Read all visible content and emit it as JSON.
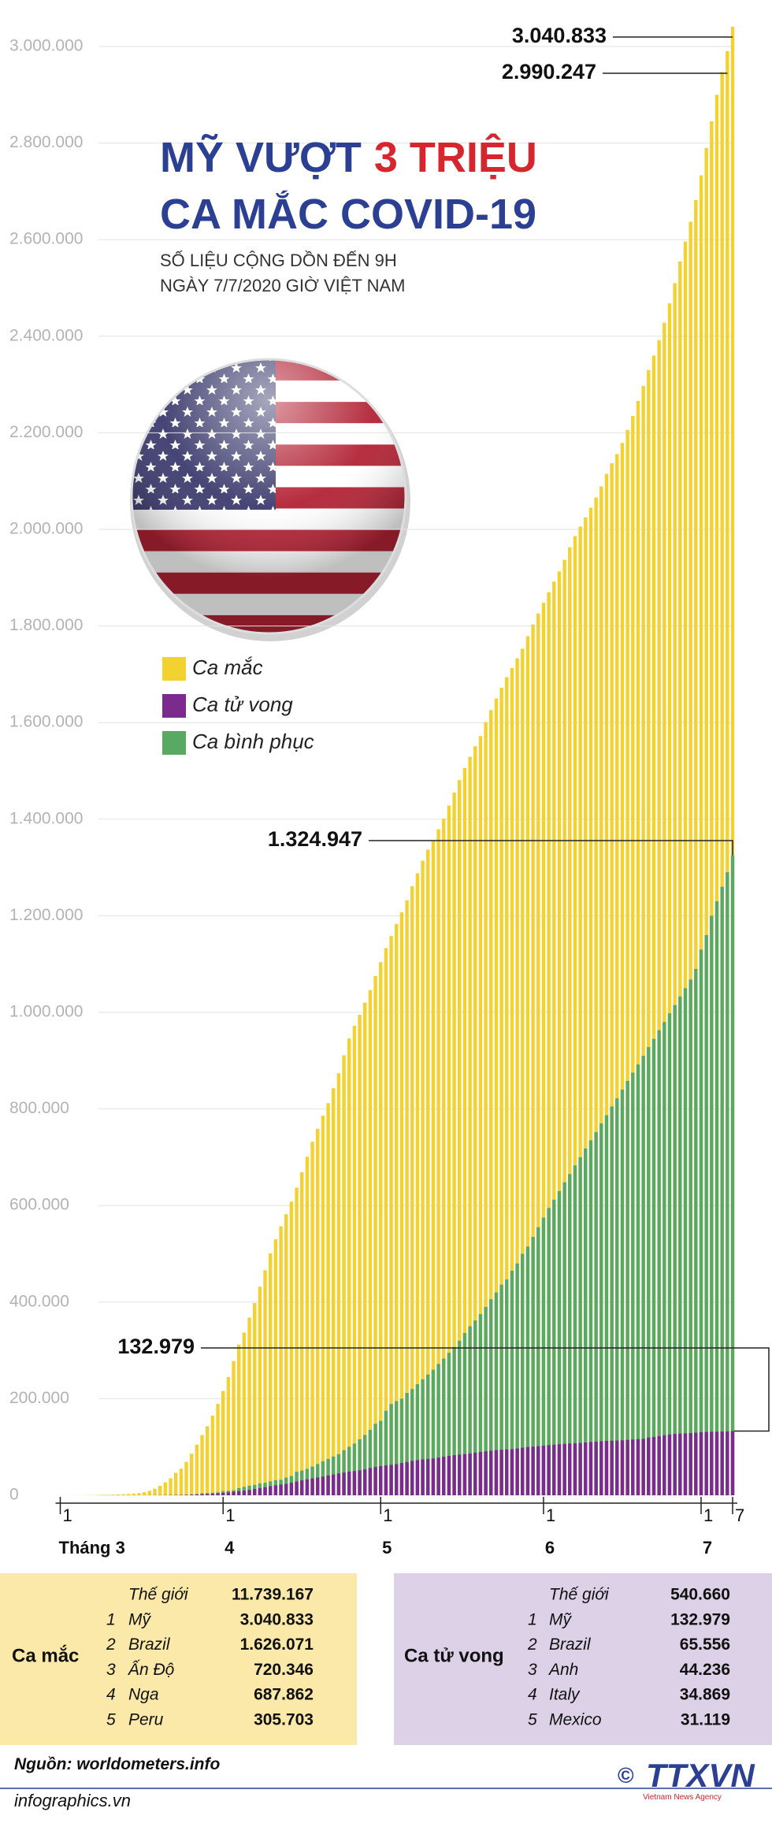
{
  "chart_data": {
    "type": "bar",
    "title": {
      "line1": "MỸ VƯỢT",
      "highlight": "3 TRIỆU",
      "line2": "CA MẮC COVID-19"
    },
    "subtitle": [
      "SỐ LIỆU CỘNG DỒN ĐẾN 9H",
      "NGÀY 7/7/2020 GIỜ VIỆT NAM"
    ],
    "categories": [
      "1",
      null,
      null,
      null,
      null,
      null,
      null,
      null,
      null,
      null,
      null,
      null,
      null,
      null,
      null,
      null,
      null,
      null,
      null,
      null,
      null,
      null,
      null,
      null,
      null,
      null,
      null,
      null,
      null,
      null,
      null,
      "1",
      null,
      null,
      null,
      null,
      null,
      null,
      null,
      null,
      null,
      null,
      null,
      null,
      null,
      null,
      null,
      null,
      null,
      null,
      null,
      null,
      null,
      null,
      null,
      null,
      null,
      null,
      null,
      null,
      null,
      "1",
      null,
      null,
      null,
      null,
      null,
      null,
      null,
      null,
      null,
      null,
      null,
      null,
      null,
      null,
      null,
      null,
      null,
      null,
      null,
      null,
      null,
      null,
      null,
      null,
      null,
      null,
      null,
      null,
      null,
      null,
      "1",
      null,
      null,
      null,
      null,
      null,
      null,
      null,
      null,
      null,
      null,
      null,
      null,
      null,
      null,
      null,
      null,
      null,
      null,
      null,
      null,
      null,
      null,
      null,
      null,
      null,
      null,
      null,
      null,
      null,
      "1",
      null,
      null,
      null,
      null,
      null,
      "7"
    ],
    "month_labels": [
      "Tháng 3",
      "4",
      "5",
      "6",
      "7"
    ],
    "series": [
      {
        "name": "Ca mắc",
        "color": "#f3d130",
        "values": [
          75,
          100,
          125,
          160,
          220,
          320,
          440,
          570,
          700,
          990,
          1300,
          1700,
          2200,
          2900,
          3500,
          4600,
          6400,
          9400,
          13700,
          19600,
          26700,
          35200,
          46500,
          55200,
          69200,
          86000,
          104800,
          124800,
          143000,
          165000,
          189000,
          216000,
          245000,
          278000,
          312000,
          337000,
          368000,
          398000,
          432000,
          466000,
          501000,
          530000,
          557000,
          582000,
          608000,
          637000,
          669000,
          701000,
          732000,
          759000,
          786000,
          812000,
          843000,
          874000,
          911000,
          946000,
          972000,
          995000,
          1020000,
          1046000,
          1075000,
          1104000,
          1133000,
          1158000,
          1183000,
          1207000,
          1232000,
          1261000,
          1288000,
          1314000,
          1337000,
          1356000,
          1379000,
          1401000,
          1428000,
          1455000,
          1481000,
          1506000,
          1529000,
          1551000,
          1572000,
          1601000,
          1626000,
          1650000,
          1672000,
          1694000,
          1713000,
          1733000,
          1753000,
          1779000,
          1803000,
          1826000,
          1848000,
          1870000,
          1892000,
          1913000,
          1937000,
          1963000,
          1986000,
          2006000,
          2025000,
          2045000,
          2066000,
          2089000,
          2115000,
          2137000,
          2156000,
          2179000,
          2206000,
          2235000,
          2266000,
          2297000,
          2330000,
          2360000,
          2392000,
          2428000,
          2468000,
          2510000,
          2555000,
          2596000,
          2637000,
          2682000,
          2733000,
          2790000,
          2845000,
          2900000,
          2947000,
          2990247,
          3040833
        ],
        "value_labels": [
          null,
          null,
          null,
          null,
          null,
          null,
          null,
          null,
          null,
          null,
          null,
          null,
          null,
          null,
          null,
          null,
          null,
          null,
          null,
          null,
          null,
          null,
          null,
          null,
          null,
          null,
          null,
          null,
          null,
          null,
          null,
          null,
          null,
          null,
          null,
          null,
          null,
          null,
          null,
          null,
          null,
          null,
          null,
          null,
          null,
          null,
          null,
          null,
          null,
          null,
          null,
          null,
          null,
          null,
          null,
          null,
          null,
          null,
          null,
          null,
          null,
          null,
          null,
          null,
          null,
          null,
          null,
          null,
          null,
          null,
          null,
          null,
          null,
          null,
          null,
          null,
          null,
          null,
          null,
          null,
          null,
          null,
          null,
          null,
          null,
          null,
          null,
          null,
          null,
          null,
          null,
          null,
          null,
          null,
          null,
          null,
          null,
          null,
          null,
          null,
          null,
          null,
          null,
          null,
          null,
          null,
          null,
          null,
          null,
          null,
          null,
          null,
          null,
          null,
          null,
          null,
          null,
          null,
          null,
          null,
          null,
          null,
          null,
          null,
          null,
          null,
          null,
          "2.990.247",
          "3.040.833"
        ]
      },
      {
        "name": "Ca tử vong",
        "color": "#7a2b8d",
        "values": [
          1,
          6,
          9,
          11,
          12,
          15,
          19,
          22,
          26,
          30,
          38,
          41,
          49,
          57,
          68,
          85,
          108,
          150,
          200,
          260,
          340,
          470,
          590,
          800,
          1050,
          1300,
          1700,
          2200,
          2500,
          3100,
          4000,
          5000,
          6100,
          7400,
          8500,
          9700,
          11000,
          13000,
          14800,
          16700,
          18700,
          20600,
          22100,
          23600,
          25900,
          28400,
          30900,
          33000,
          35000,
          36800,
          38600,
          40900,
          43200,
          45200,
          47000,
          49000,
          50300,
          51600,
          53700,
          56400,
          58600,
          60400,
          61900,
          63000,
          64300,
          66700,
          69000,
          71100,
          72800,
          74300,
          75200,
          76200,
          77900,
          79700,
          81500,
          83100,
          84200,
          85000,
          86600,
          88200,
          89700,
          91000,
          92300,
          93500,
          94100,
          94800,
          95500,
          96900,
          98500,
          99800,
          100800,
          101600,
          102600,
          103700,
          104700,
          105700,
          106500,
          107200,
          107600,
          108300,
          109300,
          110300,
          111100,
          111900,
          112600,
          112900,
          113300,
          113800,
          114700,
          115500,
          116200,
          116800,
          119600,
          120800,
          122400,
          124300,
          126000,
          127000,
          127700,
          128100,
          128700,
          129700,
          130500,
          131200,
          131500,
          131700,
          132000,
          132300,
          132979
        ],
        "value_labels": [
          null,
          null,
          null,
          null,
          null,
          null,
          null,
          null,
          null,
          null,
          null,
          null,
          null,
          null,
          null,
          null,
          null,
          null,
          null,
          null,
          null,
          null,
          null,
          null,
          null,
          null,
          null,
          null,
          null,
          null,
          null,
          null,
          null,
          null,
          null,
          null,
          null,
          null,
          null,
          null,
          null,
          null,
          null,
          null,
          null,
          null,
          null,
          null,
          null,
          null,
          null,
          null,
          null,
          null,
          null,
          null,
          null,
          null,
          null,
          null,
          null,
          null,
          null,
          null,
          null,
          null,
          null,
          null,
          null,
          null,
          null,
          null,
          null,
          null,
          null,
          null,
          null,
          null,
          null,
          null,
          null,
          null,
          null,
          null,
          null,
          null,
          null,
          null,
          null,
          null,
          null,
          null,
          null,
          null,
          null,
          null,
          null,
          null,
          null,
          null,
          null,
          null,
          null,
          null,
          null,
          null,
          null,
          null,
          null,
          null,
          null,
          null,
          null,
          null,
          null,
          null,
          null,
          null,
          null,
          null,
          null,
          null,
          null,
          null,
          null,
          null,
          null,
          null,
          "132.979"
        ]
      },
      {
        "name": "Ca bình phục",
        "color": "#5aa962",
        "values": [
          7,
          7,
          8,
          8,
          8,
          8,
          8,
          8,
          8,
          8,
          8,
          12,
          12,
          12,
          12,
          17,
          17,
          17,
          125,
          147,
          178,
          178,
          178,
          394,
          394,
          1864,
          2460,
          3972,
          4562,
          5220,
          6030,
          8500,
          9300,
          10300,
          14800,
          17400,
          19700,
          21600,
          24600,
          26000,
          28800,
          31300,
          32100,
          36600,
          40000,
          48700,
          51200,
          54700,
          59500,
          64800,
          70400,
          75200,
          80200,
          85000,
          93300,
          100400,
          106900,
          115900,
          124800,
          135400,
          148100,
          154000,
          175000,
          189000,
          195000,
          200000,
          212000,
          220000,
          230000,
          240000,
          250000,
          260000,
          272000,
          283000,
          295000,
          307000,
          320000,
          336000,
          350000,
          362000,
          375000,
          390000,
          406000,
          420000,
          436000,
          447000,
          465000,
          480000,
          500000,
          515000,
          535000,
          555000,
          575000,
          595000,
          612000,
          630000,
          648000,
          665000,
          683000,
          700000,
          718000,
          735000,
          752000,
          770000,
          787000,
          805000,
          822000,
          840000,
          858000,
          875000,
          892000,
          910000,
          928000,
          945000,
          963000,
          980000,
          998000,
          1015000,
          1033000,
          1050000,
          1068000,
          1090000,
          1130000,
          1160000,
          1200000,
          1230000,
          1260000,
          1290000,
          1324947
        ],
        "value_labels": [
          null,
          null,
          null,
          null,
          null,
          null,
          null,
          null,
          null,
          null,
          null,
          null,
          null,
          null,
          null,
          null,
          null,
          null,
          null,
          null,
          null,
          null,
          null,
          null,
          null,
          null,
          null,
          null,
          null,
          null,
          null,
          null,
          null,
          null,
          null,
          null,
          null,
          null,
          null,
          null,
          null,
          null,
          null,
          null,
          null,
          null,
          null,
          null,
          null,
          null,
          null,
          null,
          null,
          null,
          null,
          null,
          null,
          null,
          null,
          null,
          null,
          null,
          null,
          null,
          null,
          null,
          null,
          null,
          null,
          null,
          null,
          null,
          null,
          null,
          null,
          null,
          null,
          null,
          null,
          null,
          null,
          null,
          null,
          null,
          null,
          null,
          null,
          null,
          null,
          null,
          null,
          null,
          null,
          null,
          null,
          null,
          null,
          null,
          null,
          null,
          null,
          null,
          null,
          null,
          null,
          null,
          null,
          null,
          null,
          null,
          null,
          null,
          null,
          null,
          null,
          null,
          null,
          null,
          null,
          null,
          null,
          null,
          null,
          null,
          null,
          null,
          null,
          null,
          "1.324.947"
        ]
      }
    ],
    "ylim": [
      0,
      3000000
    ],
    "yticks": [
      0,
      {
        "value": 200000,
        "label": "200.000"
      },
      {
        "value": 400000,
        "label": "400.000"
      },
      {
        "value": 600000,
        "label": "600.000"
      },
      {
        "value": 800000,
        "label": "800.000"
      },
      {
        "value": 1000000,
        "label": "1.000.000"
      },
      {
        "value": 1200000,
        "label": "1.200.000"
      },
      {
        "value": 1400000,
        "label": "1.400.000"
      },
      {
        "value": 1600000,
        "label": "1.600.000"
      },
      {
        "value": 1800000,
        "label": "1.800.000"
      },
      {
        "value": 2000000,
        "label": "2.000.000"
      },
      {
        "value": 2200000,
        "label": "2.200.000"
      },
      {
        "value": 2400000,
        "label": "2.400.000"
      },
      {
        "value": 2600000,
        "label": "2.600.000"
      },
      {
        "value": 2800000,
        "label": "2.800.000"
      },
      {
        "value": 3000000,
        "label": "3.000.000"
      }
    ],
    "grid": true
  },
  "tables": [
    {
      "title": "Ca mắc",
      "world": {
        "name": "Thế giới",
        "value": "11.739.167"
      },
      "rows": [
        {
          "rank": "1",
          "name": "Mỹ",
          "value": "3.040.833"
        },
        {
          "rank": "2",
          "name": "Brazil",
          "value": "1.626.071"
        },
        {
          "rank": "3",
          "name": "Ấn Độ",
          "value": "720.346"
        },
        {
          "rank": "4",
          "name": "Nga",
          "value": "687.862"
        },
        {
          "rank": "5",
          "name": "Peru",
          "value": "305.703"
        }
      ]
    },
    {
      "title": "Ca tử vong",
      "world": {
        "name": "Thế giới",
        "value": "540.660"
      },
      "rows": [
        {
          "rank": "1",
          "name": "Mỹ",
          "value": "132.979"
        },
        {
          "rank": "2",
          "name": "Brazil",
          "value": "65.556"
        },
        {
          "rank": "3",
          "name": "Anh",
          "value": "44.236"
        },
        {
          "rank": "4",
          "name": "Italy",
          "value": "34.869"
        },
        {
          "rank": "5",
          "name": "Mexico",
          "value": "31.119"
        }
      ]
    }
  ],
  "footer": {
    "source": "Nguồn: worldometers.info",
    "site": "infographics.vn",
    "copyright": "©",
    "logo": "TTXVN",
    "agency": "Vietnam News Agency"
  }
}
